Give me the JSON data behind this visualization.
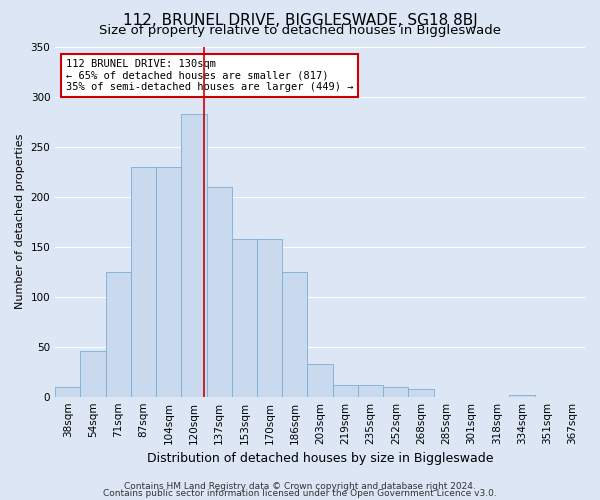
{
  "title": "112, BRUNEL DRIVE, BIGGLESWADE, SG18 8BJ",
  "subtitle": "Size of property relative to detached houses in Biggleswade",
  "xlabel": "Distribution of detached houses by size in Biggleswade",
  "ylabel": "Number of detached properties",
  "categories": [
    "38sqm",
    "54sqm",
    "71sqm",
    "87sqm",
    "104sqm",
    "120sqm",
    "137sqm",
    "153sqm",
    "170sqm",
    "186sqm",
    "203sqm",
    "219sqm",
    "235sqm",
    "252sqm",
    "268sqm",
    "285sqm",
    "301sqm",
    "318sqm",
    "334sqm",
    "351sqm",
    "367sqm"
  ],
  "values": [
    10,
    46,
    125,
    230,
    230,
    283,
    210,
    158,
    158,
    125,
    33,
    12,
    12,
    10,
    8,
    0,
    0,
    0,
    2,
    0,
    0
  ],
  "bar_color": "#c9d9ee",
  "bar_edge_color": "#7bafd4",
  "background_color": "#dce6f5",
  "grid_color": "#ffffff",
  "vline_color": "#cc0000",
  "vline_pos": 5.38,
  "annotation_text": "112 BRUNEL DRIVE: 130sqm\n← 65% of detached houses are smaller (817)\n35% of semi-detached houses are larger (449) →",
  "annotation_box_color": "#ffffff",
  "annotation_box_edge_color": "#cc0000",
  "footer1": "Contains HM Land Registry data © Crown copyright and database right 2024.",
  "footer2": "Contains public sector information licensed under the Open Government Licence v3.0.",
  "ylim": [
    0,
    350
  ],
  "yticks": [
    0,
    50,
    100,
    150,
    200,
    250,
    300,
    350
  ],
  "title_fontsize": 11,
  "subtitle_fontsize": 9.5,
  "xlabel_fontsize": 9,
  "ylabel_fontsize": 8,
  "tick_fontsize": 7.5,
  "annotation_fontsize": 7.5,
  "footer_fontsize": 6.5
}
